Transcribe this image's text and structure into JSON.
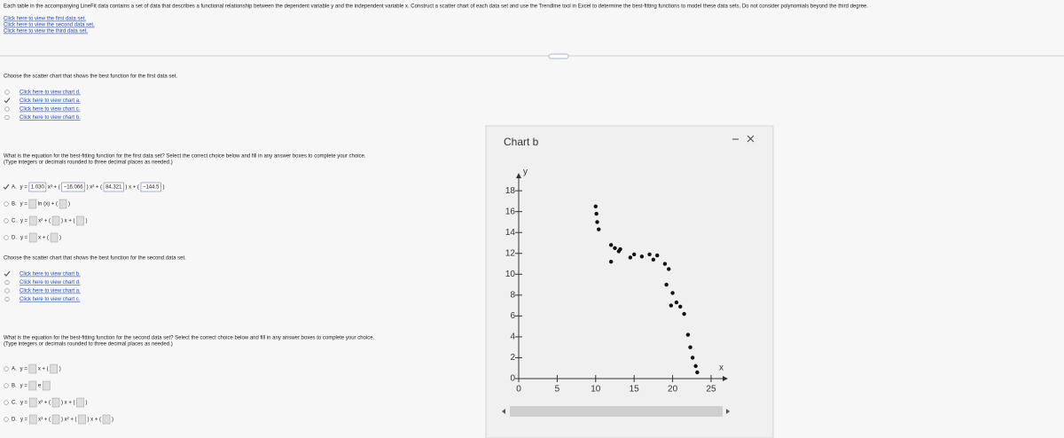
{
  "intro": "Each table in the accompanying LineFit data contains a set of data that describes a functional relationship between the dependent variable y and the independent variable x. Construct a scatter chart of each data set and use the Trendline tool in Excel to determine the best-fitting functions to model these data sets. Do not consider polynomials beyond the third degree.",
  "data_links": [
    "Click here to view the first data set.",
    "Click here to view the second data set.",
    "Click here to view the third data set."
  ],
  "section1": {
    "chart_prompt": "Choose the scatter chart that shows the best function for the first data set.",
    "chart_options": [
      {
        "label": "Click here to view chart d."
      },
      {
        "label": "Click here to view chart a.",
        "selected": true
      },
      {
        "label": "Click here to view chart c."
      },
      {
        "label": "Click here to view chart b."
      }
    ],
    "equation_prompt": "What is the equation for the best-fitting function for the first data set? Select the correct choice below and fill in any answer boxes to complete your choice.",
    "equation_note": "(Type integers or decimals rounded to three decimal places as needed.)",
    "equation_options": [
      {
        "letter": "A.",
        "selected": true,
        "tokens": [
          "y =",
          {
            "filled": "1.030"
          },
          "x³ + (",
          {
            "filled": "−16.066"
          },
          ") x² + (",
          {
            "filled": "84.321"
          },
          ") x + (",
          {
            "filled": "−144.5"
          },
          ")"
        ]
      },
      {
        "letter": "B.",
        "tokens": [
          "y =",
          null,
          "ln (x) + (",
          null,
          ")"
        ]
      },
      {
        "letter": "C.",
        "tokens": [
          "y =",
          null,
          "x² + (",
          null,
          ") x + (",
          null,
          ")"
        ]
      },
      {
        "letter": "D.",
        "tokens": [
          "y =",
          null,
          "x + (",
          null,
          ")"
        ]
      }
    ]
  },
  "section2": {
    "chart_prompt": "Choose the scatter chart that shows the best function for the second data set.",
    "chart_options": [
      {
        "label": "Click here to view chart b.",
        "selected": true
      },
      {
        "label": "Click here to view chart d."
      },
      {
        "label": "Click here to view chart a."
      },
      {
        "label": "Click here to view chart c."
      }
    ],
    "equation_prompt": "What is the equation for the best-fitting function for the second data set? Select the correct choice below and fill in any answer boxes to complete your choice.",
    "equation_note": "(Type integers or decimals rounded to three decimal places as needed.)",
    "equation_options": [
      {
        "letter": "A.",
        "tokens": [
          "y =",
          null,
          "x + (",
          null,
          ")"
        ]
      },
      {
        "letter": "B.",
        "tokens": [
          "y =",
          null,
          "e",
          null
        ]
      },
      {
        "letter": "C.",
        "tokens": [
          "y =",
          null,
          "x² + (",
          null,
          ") x + (",
          null,
          ")"
        ]
      },
      {
        "letter": "D.",
        "tokens": [
          "y =",
          null,
          "x³ + (",
          null,
          ") x² + (",
          null,
          ") x + (",
          null,
          ")"
        ]
      }
    ]
  },
  "chart_data": {
    "type": "scatter",
    "title": "Chart b",
    "x_label": "x",
    "y_label": "y",
    "color": "#111111",
    "x": [
      10,
      10.1,
      10.2,
      10.4,
      12,
      12.5,
      13,
      13.2,
      12,
      14.5,
      15,
      16,
      17,
      17.5,
      18,
      19,
      19.5,
      19.2,
      20,
      20.5,
      19.8,
      21,
      21.5,
      22,
      22.3,
      22.6,
      23,
      23.2
    ],
    "values": [
      16.5,
      15.8,
      15.0,
      14.3,
      12.8,
      12.5,
      12.2,
      12.4,
      11.2,
      11.6,
      11.9,
      11.7,
      11.9,
      11.4,
      11.8,
      11.0,
      10.5,
      9.0,
      8.2,
      7.3,
      7.0,
      6.9,
      6.2,
      4.2,
      3.0,
      2.0,
      1.2,
      0.6
    ],
    "xlim": [
      0,
      26.5
    ],
    "ylim": [
      0,
      19.2
    ],
    "xticks": [
      0,
      5,
      10,
      15,
      20,
      25
    ],
    "yticks": [
      0,
      2,
      4,
      6,
      8,
      10,
      12,
      14,
      16,
      18
    ],
    "grid": false
  }
}
